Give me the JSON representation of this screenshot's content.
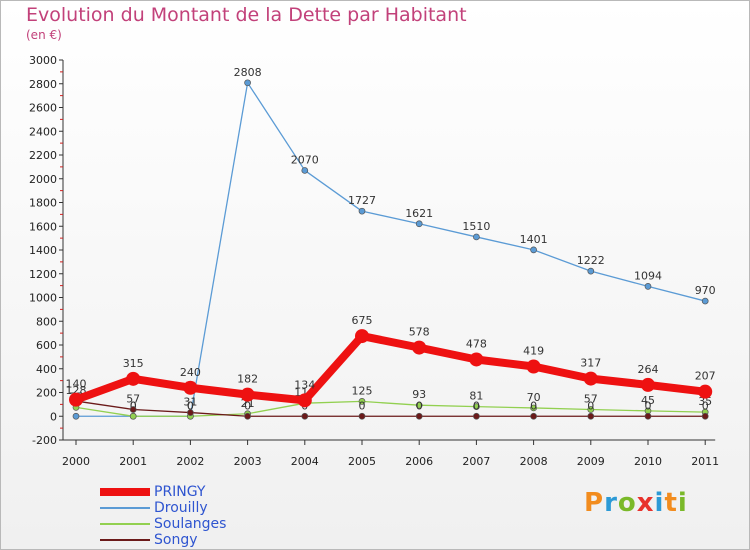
{
  "header": {
    "title": "Evolution du Montant de la Dette par Habitant",
    "subtitle": "(en €)"
  },
  "logo": {
    "text": "Proxiti",
    "letters": [
      {
        "ch": "P",
        "color": "#f28c1e"
      },
      {
        "ch": "r",
        "color": "#2c9ad6"
      },
      {
        "ch": "o",
        "color": "#7ab929"
      },
      {
        "ch": "x",
        "color": "#e8322c"
      },
      {
        "ch": "i",
        "color": "#2c9ad6"
      },
      {
        "ch": "t",
        "color": "#f28c1e"
      },
      {
        "ch": "i",
        "color": "#7ab929"
      }
    ]
  },
  "chart_data": {
    "type": "line",
    "title": "Evolution du Montant de la Dette par Habitant",
    "subtitle": "(en €)",
    "x": [
      "2000",
      "2001",
      "2002",
      "2003",
      "2004",
      "2005",
      "2006",
      "2007",
      "2008",
      "2009",
      "2010",
      "2011"
    ],
    "ylim": [
      -200,
      3000
    ],
    "yticks": [
      -200,
      0,
      200,
      400,
      600,
      800,
      1000,
      1200,
      1400,
      1600,
      1800,
      2000,
      2200,
      2400,
      2600,
      2800,
      3000
    ],
    "grid": false,
    "legend_position": "bottom-left",
    "series": [
      {
        "name": "Drouilly",
        "color": "#5b9bd5",
        "values": [
          0,
          0,
          0,
          2808,
          2070,
          1727,
          1621,
          1510,
          1401,
          1222,
          1094,
          970
        ],
        "labels": [
          "0",
          "0",
          "0",
          "2808",
          "2070",
          "1727",
          "1621",
          "1510",
          "1401",
          "1222",
          "1094",
          "970"
        ]
      },
      {
        "name": "Soulanges",
        "color": "#92d050",
        "values": [
          75,
          0,
          0,
          21,
          110,
          125,
          93,
          81,
          70,
          57,
          45,
          35
        ],
        "labels": [
          "75",
          "0",
          "0",
          "21",
          "110",
          "125",
          "93",
          "81",
          "70",
          "57",
          "45",
          "35"
        ]
      },
      {
        "name": "Songy",
        "color": "#6b1a1a",
        "values": [
          128,
          57,
          31,
          0,
          0,
          0,
          0,
          0,
          0,
          0,
          0,
          0
        ],
        "labels": [
          "128",
          "57",
          "31",
          "0",
          "0",
          "0",
          "0",
          "0",
          "0",
          "0",
          "0",
          "0"
        ]
      },
      {
        "name": "PRINGY",
        "color": "#ee1111",
        "values": [
          140,
          315,
          240,
          182,
          134,
          675,
          578,
          478,
          419,
          317,
          264,
          207
        ],
        "labels": [
          "140",
          "315",
          "240",
          "182",
          "134",
          "675",
          "578",
          "478",
          "419",
          "317",
          "264",
          "207"
        ]
      }
    ]
  }
}
